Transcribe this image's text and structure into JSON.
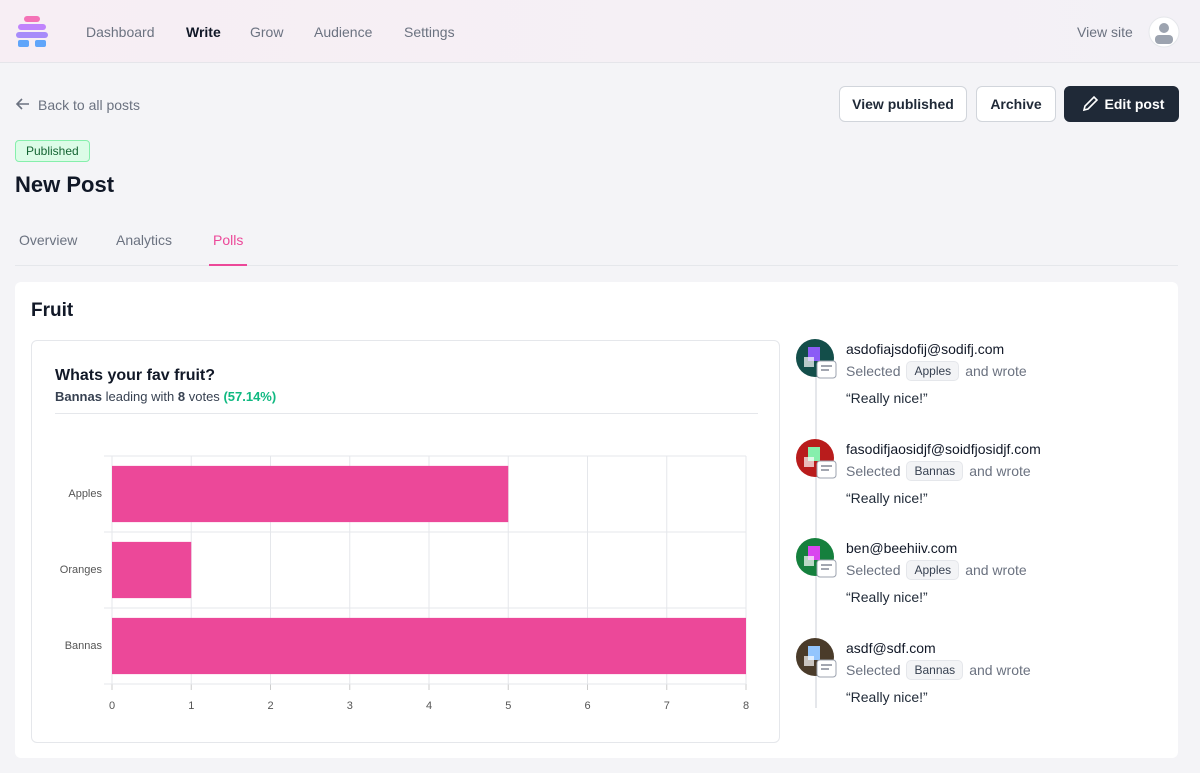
{
  "nav": {
    "items": [
      "Dashboard",
      "Write",
      "Grow",
      "Audience",
      "Settings"
    ],
    "active": 1,
    "view_site": "View site"
  },
  "header": {
    "back": "Back to all posts",
    "buttons": [
      "View published",
      "Archive",
      "Edit post"
    ],
    "status": "Published",
    "title": "New Post"
  },
  "tabs": {
    "items": [
      "Overview",
      "Analytics",
      "Polls"
    ],
    "active": 2
  },
  "poll": {
    "title": "Fruit",
    "question": "Whats your fav fruit?",
    "summary": {
      "leader": "Bannas",
      "text1": "leading with",
      "votes": "8",
      "text2": "votes",
      "percent": "(57.14%)"
    },
    "chart_data": {
      "type": "bar",
      "orientation": "horizontal",
      "categories": [
        "Apples",
        "Oranges",
        "Bannas"
      ],
      "values": [
        5,
        1,
        8
      ],
      "color": "#ec4899",
      "xlim": [
        0,
        8
      ],
      "xticks": [
        0,
        1,
        2,
        3,
        4,
        5,
        6,
        7,
        8
      ],
      "grid": true
    }
  },
  "responses": [
    {
      "email": "asdofiajsdofij@sodifj.com",
      "selected": "Selected",
      "choice": "Apples",
      "wrote": "and wrote",
      "comment": "“Really nice!”"
    },
    {
      "email": "fasodifjaosidjf@soidfjosidjf.com",
      "selected": "Selected",
      "choice": "Bannas",
      "wrote": "and wrote",
      "comment": "“Really nice!”"
    },
    {
      "email": "ben@beehiiv.com",
      "selected": "Selected",
      "choice": "Apples",
      "wrote": "and wrote",
      "comment": "“Really nice!”"
    },
    {
      "email": "asdf@sdf.com",
      "selected": "Selected",
      "choice": "Bannas",
      "wrote": "and wrote",
      "comment": "“Really nice!”"
    }
  ]
}
